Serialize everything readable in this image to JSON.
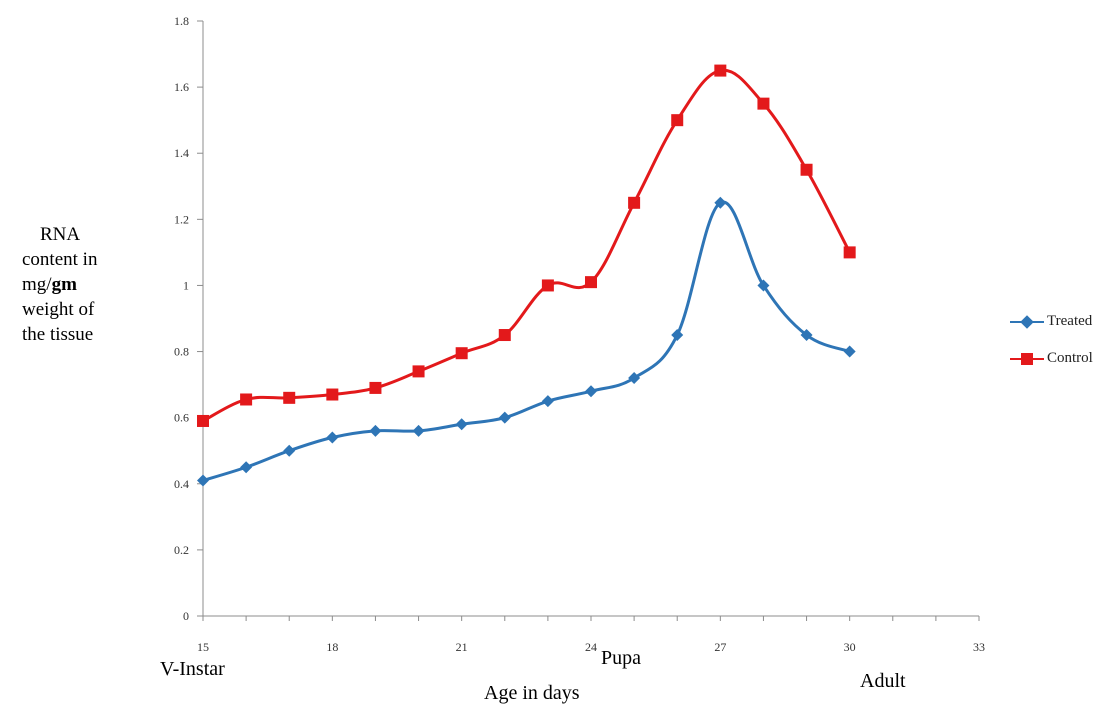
{
  "chart_data": {
    "type": "line",
    "x": [
      15,
      16,
      17,
      18,
      19,
      20,
      21,
      22,
      23,
      24,
      25,
      26,
      27,
      28,
      29,
      30
    ],
    "xlim": [
      15,
      33
    ],
    "x_ticks": [
      "15",
      "18",
      "21",
      "24",
      "27",
      "30",
      "33"
    ],
    "ylim": [
      0,
      1.8
    ],
    "y_ticks": [
      "0",
      "0.2",
      "0.4",
      "0.6",
      "0.8",
      "1",
      "1.2",
      "1.4",
      "1.6",
      "1.8"
    ],
    "series": [
      {
        "name": "Treated",
        "color": "#2e75b6",
        "marker": "diamond",
        "values": [
          0.41,
          0.45,
          0.5,
          0.54,
          0.56,
          0.56,
          0.58,
          0.6,
          0.65,
          0.68,
          0.72,
          0.85,
          1.25,
          1.0,
          0.85,
          0.8
        ]
      },
      {
        "name": "Control",
        "color": "#e3191b",
        "marker": "square",
        "values": [
          0.59,
          0.655,
          0.66,
          0.67,
          0.69,
          0.74,
          0.795,
          0.85,
          1.0,
          1.01,
          1.25,
          1.5,
          1.65,
          1.55,
          1.35,
          1.1
        ]
      }
    ],
    "xlabel": "Age in days",
    "ylabel_lines": [
      "RNA",
      "content in",
      "mg/",
      "gm",
      "weight of",
      "the tissue"
    ],
    "stage_labels": [
      "V-Instar",
      "Pupa",
      "Adult"
    ],
    "legend_position": "right",
    "grid": false
  }
}
